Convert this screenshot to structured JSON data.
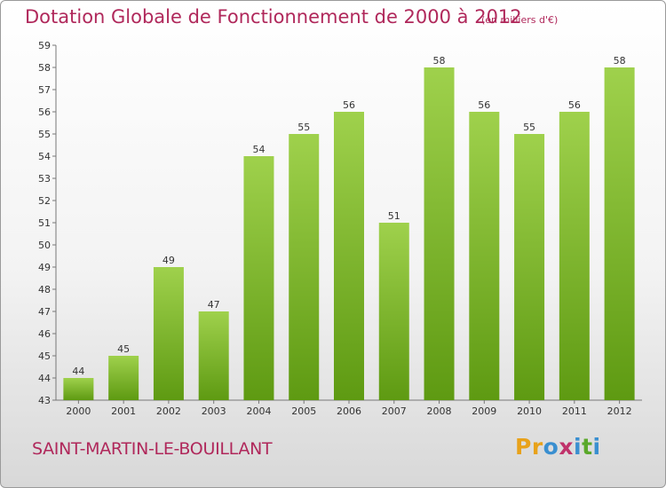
{
  "title": "Dotation Globale de Fonctionnement de 2000 à 2012",
  "unit": "(en milliers d'€)",
  "commune": "SAINT-MARTIN-LE-BOUILLANT",
  "logo": {
    "letters": [
      "P",
      "r",
      "o",
      "x",
      "i",
      "t",
      "i"
    ],
    "colors": [
      "#e8a21a",
      "#e8a21a",
      "#3a8fd0",
      "#c0336b",
      "#3a8fd0",
      "#5aa82a",
      "#3a8fd0"
    ]
  },
  "colors": {
    "bar_top": "#9fd14c",
    "bar_bottom": "#5e9a12",
    "title": "#b0285b"
  },
  "chart_data": {
    "type": "bar",
    "categories": [
      "2000",
      "2001",
      "2002",
      "2003",
      "2004",
      "2005",
      "2006",
      "2007",
      "2008",
      "2009",
      "2010",
      "2011",
      "2012"
    ],
    "values": [
      44,
      45,
      49,
      47,
      54,
      55,
      56,
      51,
      58,
      56,
      55,
      56,
      58
    ],
    "ylim": [
      43,
      59
    ],
    "yticks": [
      43,
      44,
      45,
      46,
      47,
      48,
      49,
      50,
      51,
      52,
      53,
      54,
      55,
      56,
      57,
      58,
      59
    ],
    "grid": false
  }
}
